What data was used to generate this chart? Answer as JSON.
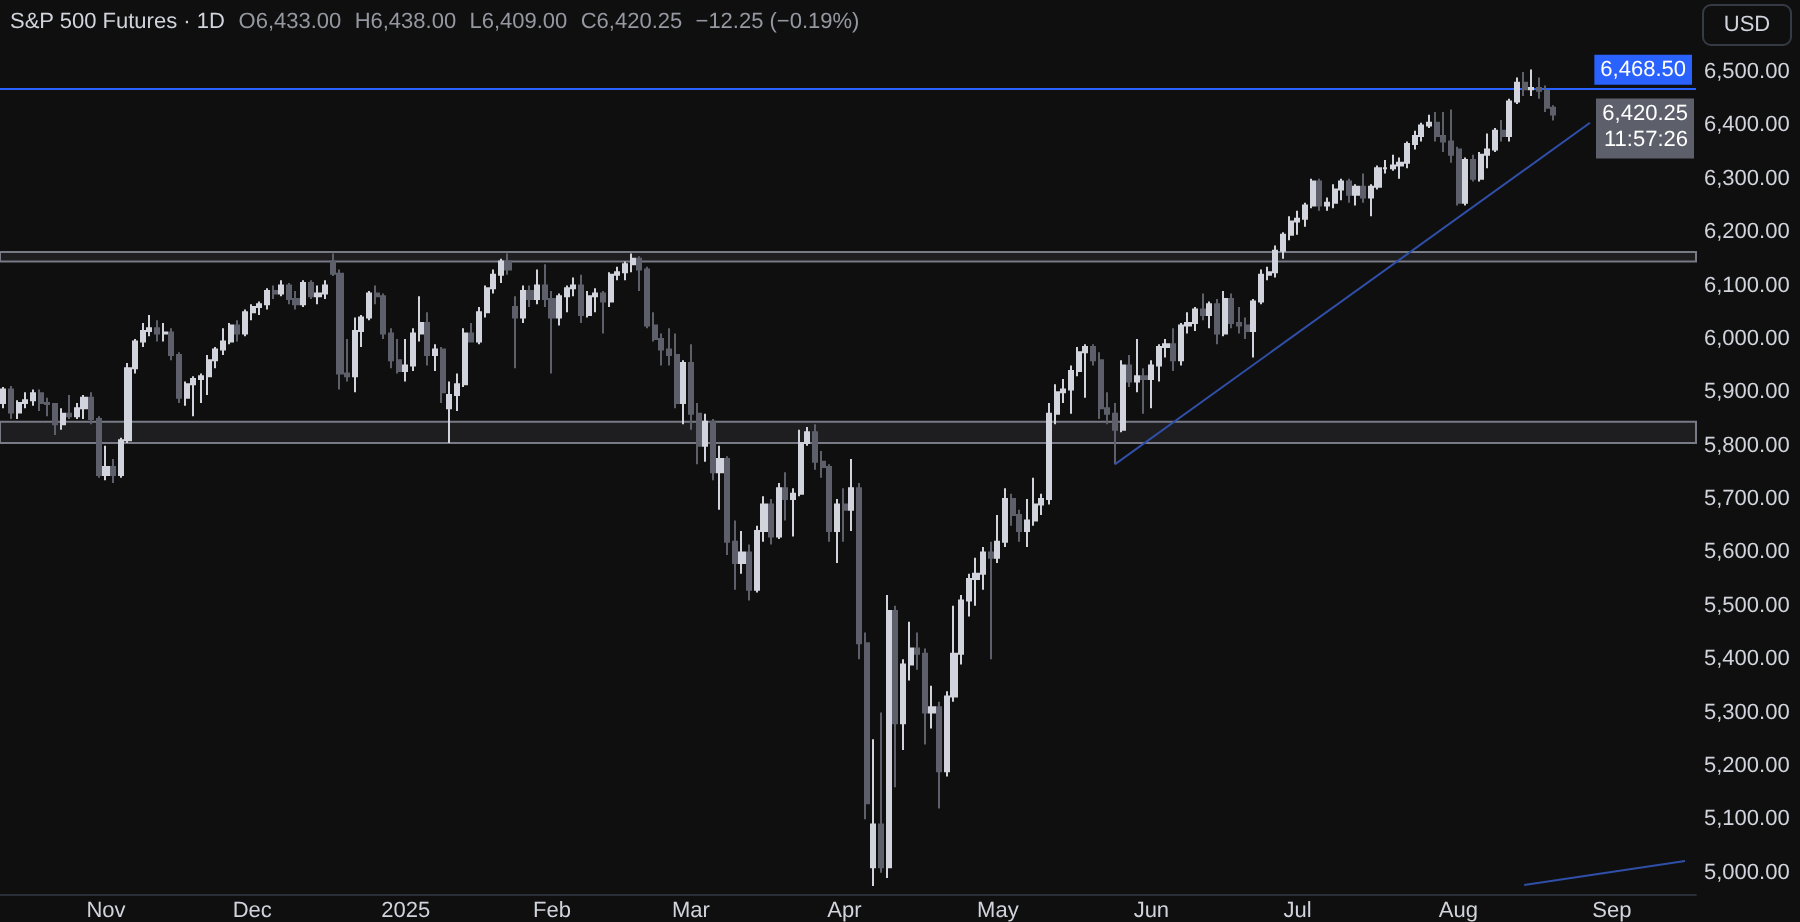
{
  "chart_data": {
    "type": "candlestick",
    "title": "S&P 500 Futures · 1D",
    "annotations": [
      "O6,433.00",
      "H6,438.00",
      "L6,409.00",
      "C6,420.25",
      "−12.25 (−0.19%)",
      "USD",
      "6,420.25",
      "11:57:26"
    ],
    "categories": [
      null,
      null,
      null,
      null,
      null,
      null,
      null,
      null,
      null,
      null,
      null,
      null,
      null,
      null,
      "Nov",
      null,
      null,
      null,
      null,
      null,
      null,
      null,
      null,
      null,
      null,
      null,
      null,
      null,
      null,
      null,
      null,
      null,
      null,
      null,
      "Dec",
      null,
      null,
      null,
      null,
      null,
      null,
      null,
      null,
      null,
      null,
      null,
      null,
      null,
      null,
      null,
      null,
      null,
      null,
      null,
      null,
      "2025",
      null,
      null,
      null,
      null,
      null,
      null,
      null,
      null,
      null,
      null,
      null,
      null,
      null,
      null,
      null,
      null,
      null,
      null,
      null,
      "Feb",
      null,
      null,
      null,
      null,
      null,
      null,
      null,
      null,
      null,
      null,
      null,
      null,
      null,
      null,
      null,
      null,
      null,
      null,
      "Mar",
      null,
      null,
      null,
      null,
      null,
      null,
      null,
      null,
      null,
      null,
      null,
      null,
      null,
      null,
      null,
      null,
      null,
      null,
      null,
      null,
      "Apr",
      null,
      null,
      null,
      null,
      null,
      null,
      null,
      null,
      null,
      null,
      null,
      null,
      null,
      null,
      null,
      null,
      null,
      null,
      null,
      null,
      "May",
      null,
      null,
      null,
      null,
      null,
      null,
      null,
      null,
      null,
      null,
      null,
      null,
      null,
      null,
      null,
      null,
      null,
      null,
      null,
      null,
      "Jun",
      null,
      null,
      null,
      null,
      null,
      null,
      null,
      null,
      null,
      null,
      null,
      null,
      null,
      null,
      null,
      null,
      null,
      null,
      null,
      "Jul",
      null,
      null,
      null,
      null,
      null,
      null,
      null,
      null,
      null,
      null,
      null,
      null,
      null,
      null,
      null,
      null,
      null,
      null,
      null,
      null,
      null,
      "Aug",
      null,
      null,
      null,
      null,
      null,
      null,
      null,
      null,
      null,
      null,
      null,
      null,
      null,
      null,
      null,
      null,
      null,
      null,
      null,
      null,
      "Sep",
      null,
      null,
      null,
      null,
      null,
      null,
      null,
      null,
      null,
      null,
      null
    ],
    "ylim": [
      4960,
      6635
    ],
    "yticks": [
      {
        "value": 5000,
        "label": "5,000.00"
      },
      {
        "value": 5100,
        "label": "5,100.00"
      },
      {
        "value": 5200,
        "label": "5,200.00"
      },
      {
        "value": 5300,
        "label": "5,300.00"
      },
      {
        "value": 5400,
        "label": "5,400.00"
      },
      {
        "value": 5500,
        "label": "5,500.00"
      },
      {
        "value": 5600,
        "label": "5,600.00"
      },
      {
        "value": 5700,
        "label": "5,700.00"
      },
      {
        "value": 5800,
        "label": "5,800.00"
      },
      {
        "value": 5900,
        "label": "5,900.00"
      },
      {
        "value": 6000,
        "label": "6,000.00"
      },
      {
        "value": 6100,
        "label": "6,100.00"
      },
      {
        "value": 6200,
        "label": "6,200.00"
      },
      {
        "value": 6300,
        "label": "6,300.00"
      },
      {
        "value": 6400,
        "label": "6,400.00"
      },
      {
        "value": 6500,
        "label": "6,500.00"
      }
    ],
    "ohlc": [
      [
        5880,
        5910,
        5870,
        5905
      ],
      [
        5905,
        5912,
        5850,
        5862
      ],
      [
        5862,
        5885,
        5850,
        5880
      ],
      [
        5880,
        5900,
        5870,
        5885
      ],
      [
        5885,
        5905,
        5875,
        5898
      ],
      [
        5898,
        5905,
        5865,
        5880
      ],
      [
        5880,
        5890,
        5855,
        5878
      ],
      [
        5878,
        5880,
        5820,
        5840
      ],
      [
        5840,
        5870,
        5830,
        5860
      ],
      [
        5860,
        5895,
        5850,
        5855
      ],
      [
        5855,
        5880,
        5850,
        5870
      ],
      [
        5870,
        5895,
        5850,
        5890
      ],
      [
        5890,
        5900,
        5840,
        5850
      ],
      [
        5850,
        5855,
        5740,
        5745
      ],
      [
        5745,
        5800,
        5735,
        5760
      ],
      [
        5760,
        5775,
        5730,
        5745
      ],
      [
        5745,
        5815,
        5740,
        5810
      ],
      [
        5810,
        5955,
        5805,
        5945
      ],
      [
        5945,
        6000,
        5935,
        5995
      ],
      [
        5995,
        6030,
        5985,
        6015
      ],
      [
        6015,
        6045,
        6005,
        6020
      ],
      [
        6020,
        6035,
        5995,
        6010
      ],
      [
        6010,
        6030,
        5995,
        6012
      ],
      [
        6012,
        6020,
        5960,
        5970
      ],
      [
        5970,
        5975,
        5880,
        5890
      ],
      [
        5890,
        5920,
        5875,
        5915
      ],
      [
        5915,
        5930,
        5855,
        5925
      ],
      [
        5925,
        5935,
        5880,
        5930
      ],
      [
        5930,
        5970,
        5895,
        5960
      ],
      [
        5960,
        5985,
        5945,
        5980
      ],
      [
        5980,
        6020,
        5970,
        5995
      ],
      [
        5995,
        6030,
        5990,
        6025
      ],
      [
        6025,
        6035,
        5995,
        6010
      ],
      [
        6010,
        6055,
        6005,
        6050
      ],
      [
        6050,
        6065,
        6035,
        6060
      ],
      [
        6060,
        6070,
        6045,
        6065
      ],
      [
        6065,
        6095,
        6055,
        6090
      ],
      [
        6090,
        6100,
        6075,
        6085
      ],
      [
        6085,
        6110,
        6080,
        6100
      ],
      [
        6100,
        6105,
        6065,
        6075
      ],
      [
        6075,
        6090,
        6055,
        6065
      ],
      [
        6065,
        6110,
        6060,
        6105
      ],
      [
        6105,
        6110,
        6075,
        6080
      ],
      [
        6080,
        6100,
        6065,
        6085
      ],
      [
        6085,
        6110,
        6075,
        6100
      ],
      [
        6145,
        6160,
        6118,
        6122
      ],
      [
        6122,
        6130,
        5905,
        5935
      ],
      [
        5935,
        6000,
        5920,
        5930
      ],
      [
        5930,
        6040,
        5900,
        6015
      ],
      [
        6015,
        6045,
        5985,
        6040
      ],
      [
        6040,
        6090,
        6035,
        6085
      ],
      [
        6085,
        6100,
        6065,
        6080
      ],
      [
        6080,
        6085,
        6000,
        6010
      ],
      [
        6010,
        6020,
        5945,
        5960
      ],
      [
        5960,
        6000,
        5935,
        5940
      ],
      [
        5940,
        6000,
        5920,
        5950
      ],
      [
        5950,
        6020,
        5940,
        6010
      ],
      [
        6010,
        6080,
        5995,
        6030
      ],
      [
        6030,
        6050,
        5950,
        5970
      ],
      [
        5970,
        5990,
        5940,
        5980
      ],
      [
        5980,
        5985,
        5880,
        5900
      ],
      [
        5870,
        5920,
        5805,
        5895
      ],
      [
        5895,
        5935,
        5865,
        5915
      ],
      [
        5915,
        6020,
        5910,
        6010
      ],
      [
        6010,
        6030,
        5995,
        5995
      ],
      [
        5995,
        6060,
        5990,
        6050
      ],
      [
        6050,
        6100,
        6040,
        6095
      ],
      [
        6095,
        6130,
        6085,
        6120
      ],
      [
        6120,
        6150,
        6105,
        6145
      ],
      [
        6145,
        6160,
        6120,
        6130
      ],
      [
        6060,
        6080,
        5945,
        6040
      ],
      [
        6040,
        6100,
        6030,
        6090
      ],
      [
        6090,
        6100,
        6060,
        6075
      ],
      [
        6075,
        6130,
        6065,
        6100
      ],
      [
        6100,
        6140,
        6060,
        6075
      ],
      [
        6075,
        6090,
        5935,
        6040
      ],
      [
        6040,
        6085,
        6025,
        6080
      ],
      [
        6080,
        6100,
        6050,
        6095
      ],
      [
        6095,
        6115,
        6080,
        6100
      ],
      [
        6100,
        6120,
        6030,
        6045
      ],
      [
        6045,
        6090,
        6040,
        6080
      ],
      [
        6080,
        6095,
        6050,
        6085
      ],
      [
        6085,
        6090,
        6010,
        6070
      ],
      [
        6070,
        6125,
        6060,
        6120
      ],
      [
        6120,
        6135,
        6110,
        6125
      ],
      [
        6125,
        6145,
        6110,
        6140
      ],
      [
        6140,
        6160,
        6125,
        6150
      ],
      [
        6150,
        6155,
        6090,
        6130
      ],
      [
        6130,
        6135,
        6020,
        6025
      ],
      [
        6025,
        6050,
        5995,
        6000
      ],
      [
        6000,
        6010,
        5950,
        5980
      ],
      [
        5980,
        6020,
        5950,
        5970
      ],
      [
        5970,
        6010,
        5870,
        5880
      ],
      [
        5880,
        5960,
        5840,
        5955
      ],
      [
        5955,
        5990,
        5830,
        5860
      ],
      [
        5860,
        5880,
        5765,
        5800
      ],
      [
        5800,
        5860,
        5770,
        5845
      ],
      [
        5845,
        5850,
        5735,
        5750
      ],
      [
        5750,
        5800,
        5680,
        5775
      ],
      [
        5775,
        5780,
        5595,
        5620
      ],
      [
        5620,
        5660,
        5530,
        5580
      ],
      [
        5580,
        5640,
        5560,
        5600
      ],
      [
        5600,
        5615,
        5510,
        5530
      ],
      [
        5530,
        5650,
        5525,
        5640
      ],
      [
        5640,
        5705,
        5620,
        5690
      ],
      [
        5690,
        5700,
        5615,
        5630
      ],
      [
        5630,
        5730,
        5625,
        5720
      ],
      [
        5720,
        5750,
        5660,
        5700
      ],
      [
        5700,
        5720,
        5630,
        5710
      ],
      [
        5710,
        5830,
        5705,
        5805
      ],
      [
        5805,
        5835,
        5800,
        5825
      ],
      [
        5825,
        5840,
        5755,
        5770
      ],
      [
        5770,
        5790,
        5740,
        5760
      ],
      [
        5760,
        5765,
        5620,
        5640
      ],
      [
        5640,
        5700,
        5580,
        5690
      ],
      [
        5690,
        5720,
        5620,
        5680
      ],
      [
        5680,
        5775,
        5640,
        5720
      ],
      [
        5720,
        5730,
        5400,
        5430
      ],
      [
        5430,
        5450,
        5100,
        5130
      ],
      [
        5010,
        5250,
        4975,
        5090
      ],
      [
        5090,
        5300,
        5000,
        5010
      ],
      [
        5010,
        5520,
        4990,
        5490
      ],
      [
        5490,
        5500,
        5160,
        5280
      ],
      [
        5280,
        5400,
        5230,
        5390
      ],
      [
        5390,
        5470,
        5360,
        5420
      ],
      [
        5420,
        5450,
        5380,
        5410
      ],
      [
        5410,
        5420,
        5240,
        5300
      ],
      [
        5300,
        5350,
        5270,
        5310
      ],
      [
        5310,
        5320,
        5120,
        5190
      ],
      [
        5190,
        5340,
        5180,
        5330
      ],
      [
        5330,
        5500,
        5320,
        5410
      ],
      [
        5410,
        5520,
        5390,
        5510
      ],
      [
        5510,
        5560,
        5480,
        5550
      ],
      [
        5550,
        5590,
        5500,
        5560
      ],
      [
        5560,
        5610,
        5530,
        5600
      ],
      [
        5600,
        5620,
        5400,
        5590
      ],
      [
        5590,
        5670,
        5580,
        5620
      ],
      [
        5620,
        5720,
        5610,
        5700
      ],
      [
        5700,
        5710,
        5650,
        5670
      ],
      [
        5670,
        5680,
        5620,
        5640
      ],
      [
        5640,
        5700,
        5610,
        5660
      ],
      [
        5660,
        5740,
        5650,
        5690
      ],
      [
        5690,
        5710,
        5670,
        5700
      ],
      [
        5700,
        5880,
        5690,
        5860
      ],
      [
        5860,
        5915,
        5840,
        5900
      ],
      [
        5900,
        5925,
        5880,
        5905
      ],
      [
        5905,
        5950,
        5860,
        5940
      ],
      [
        5940,
        5985,
        5930,
        5975
      ],
      [
        5975,
        5990,
        5890,
        5985
      ],
      [
        5985,
        5990,
        5950,
        5960
      ],
      [
        5960,
        5975,
        5850,
        5870
      ],
      [
        5870,
        5900,
        5840,
        5860
      ],
      [
        5860,
        5880,
        5765,
        5830
      ],
      [
        5830,
        5960,
        5825,
        5950
      ],
      [
        5950,
        5970,
        5910,
        5920
      ],
      [
        5920,
        6000,
        5900,
        5930
      ],
      [
        5930,
        5945,
        5860,
        5925
      ],
      [
        5925,
        5960,
        5870,
        5950
      ],
      [
        5950,
        5990,
        5920,
        5985
      ],
      [
        5985,
        6000,
        5965,
        5990
      ],
      [
        5990,
        6020,
        5940,
        5960
      ],
      [
        5960,
        6030,
        5950,
        6025
      ],
      [
        6025,
        6050,
        6010,
        6030
      ],
      [
        6030,
        6060,
        6015,
        6055
      ],
      [
        6055,
        6085,
        6035,
        6045
      ],
      [
        6045,
        6070,
        6020,
        6065
      ],
      [
        6065,
        6075,
        5990,
        6010
      ],
      [
        6010,
        6090,
        6005,
        6075
      ],
      [
        6075,
        6085,
        6020,
        6030
      ],
      [
        6030,
        6060,
        6010,
        6025
      ],
      [
        6025,
        6040,
        6000,
        6015
      ],
      [
        6015,
        6075,
        5965,
        6070
      ],
      [
        6070,
        6130,
        6065,
        6120
      ],
      [
        6120,
        6135,
        6110,
        6125
      ],
      [
        6125,
        6175,
        6115,
        6165
      ],
      [
        6165,
        6200,
        6150,
        6195
      ],
      [
        6195,
        6230,
        6185,
        6220
      ],
      [
        6220,
        6240,
        6195,
        6225
      ],
      [
        6225,
        6255,
        6210,
        6250
      ],
      [
        6250,
        6300,
        6245,
        6295
      ],
      [
        6295,
        6300,
        6240,
        6250
      ],
      [
        6250,
        6265,
        6240,
        6255
      ],
      [
        6255,
        6290,
        6245,
        6280
      ],
      [
        6280,
        6300,
        6260,
        6295
      ],
      [
        6295,
        6300,
        6255,
        6270
      ],
      [
        6270,
        6290,
        6250,
        6285
      ],
      [
        6285,
        6310,
        6255,
        6265
      ],
      [
        6265,
        6290,
        6230,
        6285
      ],
      [
        6285,
        6325,
        6280,
        6320
      ],
      [
        6320,
        6335,
        6310,
        6320
      ],
      [
        6320,
        6345,
        6315,
        6325
      ],
      [
        6325,
        6340,
        6300,
        6330
      ],
      [
        6330,
        6370,
        6320,
        6365
      ],
      [
        6365,
        6390,
        6355,
        6380
      ],
      [
        6380,
        6405,
        6370,
        6400
      ],
      [
        6400,
        6420,
        6395,
        6405
      ],
      [
        6405,
        6425,
        6370,
        6380
      ],
      [
        6380,
        6425,
        6350,
        6370
      ],
      [
        6370,
        6430,
        6330,
        6345
      ],
      [
        6355,
        6360,
        6250,
        6255
      ],
      [
        6255,
        6340,
        6250,
        6335
      ],
      [
        6335,
        6345,
        6295,
        6300
      ],
      [
        6300,
        6350,
        6295,
        6345
      ],
      [
        6345,
        6385,
        6320,
        6355
      ],
      [
        6355,
        6395,
        6350,
        6390
      ],
      [
        6390,
        6410,
        6370,
        6380
      ],
      [
        6380,
        6450,
        6370,
        6445
      ],
      [
        6445,
        6490,
        6440,
        6480
      ],
      [
        6480,
        6500,
        6455,
        6468
      ],
      [
        6468,
        6505,
        6455,
        6470
      ],
      [
        6470,
        6490,
        6450,
        6465
      ],
      [
        6465,
        6475,
        6425,
        6433
      ],
      [
        6433,
        6438,
        6409,
        6420.25
      ],
      null,
      null,
      null,
      null,
      null,
      null,
      null,
      null,
      null,
      null,
      null,
      null,
      null,
      null,
      null,
      null,
      null,
      null,
      null
    ],
    "series": [
      {
        "type": "line",
        "color": "#2f4fa8",
        "values": [
          null,
          null,
          null,
          null,
          null,
          null,
          null,
          null,
          null,
          null,
          null,
          null,
          null,
          null,
          null,
          null,
          null,
          null,
          null,
          null,
          null,
          null,
          null,
          null,
          null,
          null,
          null,
          null,
          null,
          null,
          null,
          null,
          null,
          null,
          null,
          null,
          null,
          null,
          null,
          null,
          null,
          null,
          null,
          null,
          null,
          null,
          null,
          null,
          null,
          null,
          null,
          null,
          null,
          null,
          null,
          null,
          null,
          null,
          null,
          null,
          null,
          null,
          null,
          null,
          null,
          null,
          null,
          null,
          null,
          null,
          null,
          null,
          null,
          null,
          null,
          null,
          null,
          null,
          null,
          null,
          null,
          null,
          null,
          null,
          null,
          null,
          null,
          null,
          null,
          null,
          null,
          null,
          null,
          null,
          null,
          null,
          null,
          null,
          null,
          null,
          null,
          null,
          null,
          null,
          null,
          null,
          null,
          null,
          null,
          null,
          null,
          null,
          null,
          null,
          null,
          null,
          null,
          null,
          null,
          null,
          null,
          null,
          null,
          null,
          null,
          null,
          null,
          null,
          null,
          null,
          null,
          null,
          null,
          null,
          null,
          null,
          null,
          null,
          null,
          null,
          null,
          null,
          null,
          null,
          null,
          null,
          null,
          null,
          null,
          null,
          null,
          null,
          5765,
          null,
          null,
          null,
          null,
          null,
          null,
          null,
          null,
          null,
          null,
          null,
          null,
          null,
          null,
          null,
          null,
          null,
          null,
          null,
          null,
          null,
          null,
          null,
          null,
          null,
          null,
          null,
          null,
          null,
          null,
          null,
          null,
          null,
          null,
          null,
          null,
          null,
          null,
          null,
          null,
          null,
          null,
          null,
          null,
          null,
          null,
          null,
          null,
          null,
          null,
          null,
          null,
          null,
          null,
          null,
          null,
          null,
          null,
          null,
          null,
          null,
          null,
          null,
          null,
          6405,
          null,
          null,
          null,
          null,
          null,
          null,
          null,
          null,
          null,
          null,
          null,
          null,
          null,
          null
        ]
      },
      {
        "type": "line",
        "color": "#2f4fa8",
        "values": [
          null,
          null,
          null,
          null,
          null,
          null,
          null,
          null,
          null,
          null,
          null,
          null,
          null,
          null,
          null,
          null,
          null,
          null,
          null,
          null,
          null,
          null,
          null,
          null,
          null,
          null,
          null,
          null,
          null,
          null,
          null,
          null,
          null,
          null,
          null,
          null,
          null,
          null,
          null,
          null,
          null,
          null,
          null,
          null,
          null,
          null,
          null,
          null,
          null,
          null,
          null,
          null,
          null,
          null,
          null,
          null,
          null,
          null,
          null,
          null,
          null,
          null,
          null,
          null,
          null,
          null,
          null,
          null,
          null,
          null,
          null,
          null,
          null,
          null,
          null,
          null,
          null,
          null,
          null,
          null,
          null,
          null,
          null,
          null,
          null,
          null,
          null,
          null,
          null,
          null,
          null,
          null,
          null,
          null,
          null,
          null,
          null,
          null,
          null,
          null,
          null,
          null,
          null,
          null,
          null,
          null,
          null,
          null,
          null,
          null,
          null,
          null,
          null,
          null,
          null,
          null,
          null,
          null,
          null,
          null,
          null,
          null,
          null,
          null,
          null,
          null,
          null,
          null,
          null,
          null,
          null,
          null,
          null,
          null,
          null,
          null,
          null,
          null,
          null,
          null,
          null,
          null,
          null,
          null,
          null,
          null,
          null,
          null,
          null,
          null,
          null,
          null,
          null,
          null,
          null,
          null,
          null,
          null,
          null,
          null,
          null,
          null,
          null,
          null,
          null,
          null,
          null,
          null,
          null,
          null,
          null,
          null,
          null,
          null,
          null,
          null,
          null,
          null,
          null,
          null,
          null,
          null,
          null,
          null,
          null,
          null,
          null,
          null,
          null,
          null,
          null,
          null,
          null,
          null,
          null,
          null,
          null,
          null,
          null,
          null,
          null,
          null,
          null,
          null,
          null,
          null,
          null,
          null,
          4977,
          null,
          null,
          null,
          null,
          null,
          null,
          null,
          null,
          null,
          null,
          null,
          null,
          null,
          null,
          null,
          null,
          null,
          null,
          null,
          null,
          null,
          5022,
          null
        ]
      }
    ],
    "ref_lines": [
      {
        "axis": "y",
        "value": 6468.5,
        "label": "6,468.50",
        "color": "#2962ff"
      }
    ],
    "bands": [
      {
        "axis": "y",
        "from": 6145,
        "to": 6163,
        "color": "#787b86"
      },
      {
        "axis": "y",
        "from": 5805,
        "to": 5845,
        "color": "#787b86"
      }
    ]
  }
}
